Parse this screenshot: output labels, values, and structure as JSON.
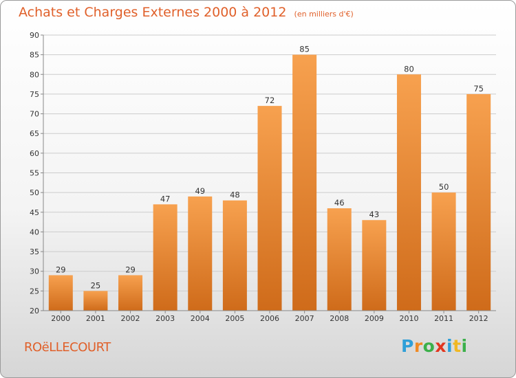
{
  "chart_data": {
    "type": "bar",
    "title": "Achats et Charges Externes 2000 à 2012",
    "subtitle": "(en milliers d'€)",
    "categories": [
      "2000",
      "2001",
      "2002",
      "2003",
      "2004",
      "2005",
      "2006",
      "2007",
      "2008",
      "2009",
      "2010",
      "2011",
      "2012"
    ],
    "values": [
      29,
      25,
      29,
      47,
      49,
      48,
      72,
      85,
      46,
      43,
      80,
      50,
      75
    ],
    "ylim": [
      20,
      90
    ],
    "yticks": [
      20,
      25,
      30,
      35,
      40,
      45,
      50,
      55,
      60,
      65,
      70,
      75,
      80,
      85,
      90
    ],
    "grid": true,
    "bar_color_top": "#f7a14f",
    "bar_color_bottom": "#cf6b1a"
  },
  "footer": {
    "commune": "ROëLLECOURT",
    "logo_letters": [
      "P",
      "r",
      "o",
      "x",
      "i",
      "t",
      "i"
    ],
    "logo_colors": [
      "#2e9fd8",
      "#f08a24",
      "#3bb04a",
      "#e2361f",
      "#2e9fd8",
      "#f0b824",
      "#3bb04a"
    ]
  },
  "colors": {
    "accent": "#e0602a",
    "grid": "#cccccc"
  }
}
